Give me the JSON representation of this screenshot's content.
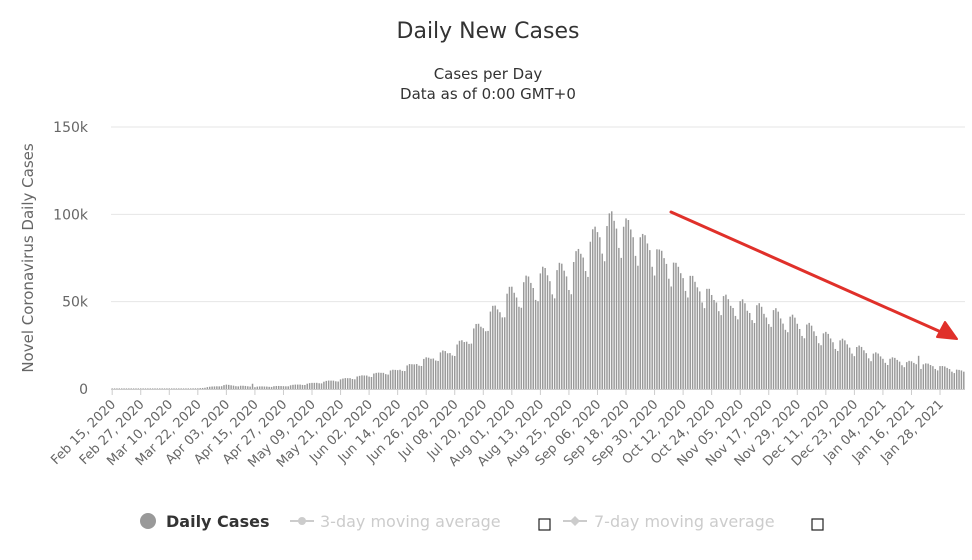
{
  "chart_data": {
    "type": "bar",
    "title": "Daily New Cases",
    "subtitle_line1": "Cases per Day",
    "subtitle_line2": "Data as of 0:00 GMT+0",
    "ylabel": "Novel Coronavirus Daily Cases",
    "xlabel": "",
    "ylim": [
      0,
      150000
    ],
    "y_ticks": [
      {
        "value": 0,
        "label": "0"
      },
      {
        "value": 50000,
        "label": "50k"
      },
      {
        "value": 100000,
        "label": "100k"
      },
      {
        "value": 150000,
        "label": "150k"
      }
    ],
    "x_start": "2020-02-15",
    "x_end": "2021-02-07",
    "x_tick_labels": [
      "Feb 15, 2020",
      "Feb 27, 2020",
      "Mar 10, 2020",
      "Mar 22, 2020",
      "Apr 03, 2020",
      "Apr 15, 2020",
      "Apr 27, 2020",
      "May 09, 2020",
      "May 21, 2020",
      "Jun 02, 2020",
      "Jun 14, 2020",
      "Jun 26, 2020",
      "Jul 08, 2020",
      "Jul 20, 2020",
      "Aug 01, 2020",
      "Aug 13, 2020",
      "Aug 25, 2020",
      "Sep 06, 2020",
      "Sep 18, 2020",
      "Sep 30, 2020",
      "Oct 12, 2020",
      "Oct 24, 2020",
      "Nov 05, 2020",
      "Nov 17, 2020",
      "Nov 29, 2020",
      "Dec 11, 2020",
      "Dec 23, 2020",
      "Jan 04, 2021",
      "Jan 16, 2021",
      "Jan 28, 2021"
    ],
    "anchor_points": [
      {
        "date": "2020-02-15",
        "value": 0
      },
      {
        "date": "2020-03-10",
        "value": 60
      },
      {
        "date": "2020-03-22",
        "value": 400
      },
      {
        "date": "2020-04-03",
        "value": 2300
      },
      {
        "date": "2020-04-15",
        "value": 1300
      },
      {
        "date": "2020-04-27",
        "value": 1700
      },
      {
        "date": "2020-05-09",
        "value": 3300
      },
      {
        "date": "2020-05-21",
        "value": 5500
      },
      {
        "date": "2020-06-02",
        "value": 8200
      },
      {
        "date": "2020-06-14",
        "value": 11000
      },
      {
        "date": "2020-06-26",
        "value": 17000
      },
      {
        "date": "2020-07-08",
        "value": 23000
      },
      {
        "date": "2020-07-20",
        "value": 38000
      },
      {
        "date": "2020-08-01",
        "value": 55000
      },
      {
        "date": "2020-08-13",
        "value": 64000
      },
      {
        "date": "2020-08-25",
        "value": 68000
      },
      {
        "date": "2020-09-06",
        "value": 89000
      },
      {
        "date": "2020-09-12",
        "value": 96000
      },
      {
        "date": "2020-09-18",
        "value": 93000
      },
      {
        "date": "2020-09-30",
        "value": 80000
      },
      {
        "date": "2020-10-12",
        "value": 66000
      },
      {
        "date": "2020-10-24",
        "value": 53000
      },
      {
        "date": "2020-11-05",
        "value": 48000
      },
      {
        "date": "2020-11-17",
        "value": 44000
      },
      {
        "date": "2020-11-29",
        "value": 38000
      },
      {
        "date": "2020-12-11",
        "value": 30000
      },
      {
        "date": "2020-12-23",
        "value": 24000
      },
      {
        "date": "2021-01-04",
        "value": 18000
      },
      {
        "date": "2021-01-16",
        "value": 15000
      },
      {
        "date": "2021-01-28",
        "value": 13000
      },
      {
        "date": "2021-02-07",
        "value": 10000
      }
    ],
    "spike_points": [
      {
        "date": "2020-04-14",
        "value": 3000
      },
      {
        "date": "2021-01-19",
        "value": 19000
      }
    ],
    "bar_color": "#999999",
    "gridline_color": "#e6e6e6",
    "annotation_arrow_color": "#e0302a",
    "legend": [
      {
        "label": "Daily Cases",
        "color": "#999999",
        "active": true
      },
      {
        "label": "3-day moving average",
        "color": "#cccccc",
        "active": false
      },
      {
        "label": "7-day moving average",
        "color": "#cccccc",
        "active": false
      }
    ]
  }
}
